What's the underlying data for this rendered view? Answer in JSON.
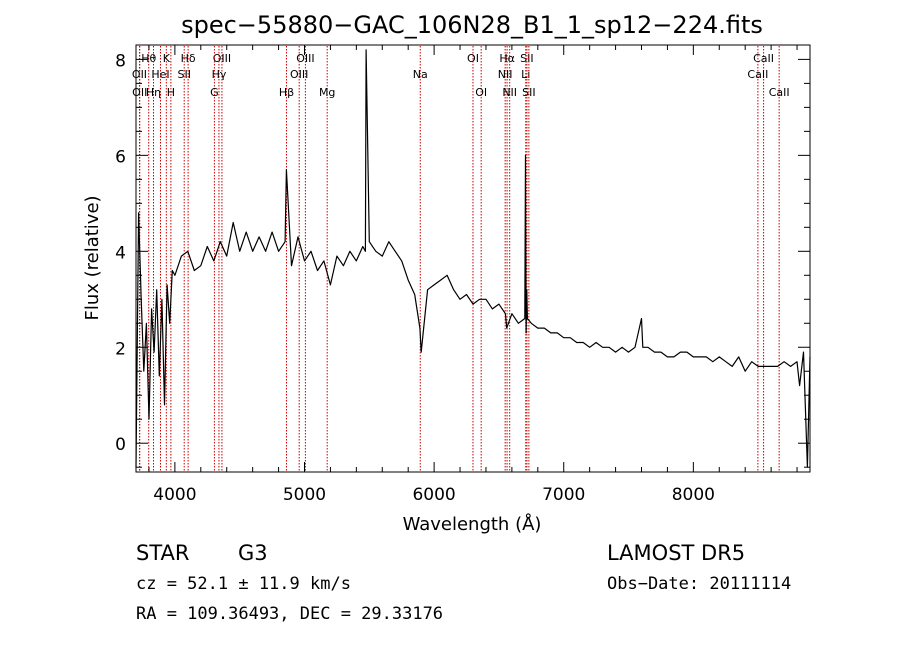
{
  "chart_data": {
    "type": "line",
    "title": "spec−55880−GAC_106N28_B1_1_sp12−224.fits",
    "xlabel": "Wavelength (Å)",
    "ylabel": "Flux (relative)",
    "xlim": [
      3700,
      8900
    ],
    "ylim": [
      -0.6,
      8.3
    ],
    "xticks": [
      4000,
      5000,
      6000,
      7000,
      8000
    ],
    "yticks": [
      0,
      2,
      4,
      6,
      8
    ],
    "grid": false,
    "series": [
      {
        "color": "#000000",
        "x": [
          3700,
          3720,
          3740,
          3760,
          3780,
          3800,
          3820,
          3840,
          3860,
          3880,
          3900,
          3920,
          3940,
          3960,
          3980,
          4000,
          4050,
          4100,
          4150,
          4200,
          4250,
          4300,
          4350,
          4400,
          4450,
          4500,
          4550,
          4600,
          4650,
          4700,
          4750,
          4800,
          4850,
          4860,
          4900,
          4950,
          5000,
          5050,
          5100,
          5150,
          5200,
          5250,
          5300,
          5350,
          5400,
          5450,
          5470,
          5475,
          5500,
          5550,
          5600,
          5650,
          5700,
          5750,
          5800,
          5850,
          5890,
          5900,
          5950,
          6000,
          6050,
          6100,
          6150,
          6200,
          6250,
          6300,
          6350,
          6400,
          6450,
          6500,
          6550,
          6560,
          6600,
          6650,
          6700,
          6705,
          6710,
          6715,
          6720,
          6750,
          6800,
          6850,
          6900,
          6950,
          7000,
          7050,
          7100,
          7150,
          7200,
          7250,
          7300,
          7350,
          7400,
          7450,
          7500,
          7550,
          7600,
          7610,
          7650,
          7700,
          7750,
          7800,
          7850,
          7900,
          7950,
          8000,
          8050,
          8100,
          8150,
          8200,
          8250,
          8300,
          8350,
          8400,
          8450,
          8500,
          8550,
          8600,
          8650,
          8700,
          8750,
          8800,
          8820,
          8850,
          8880,
          8900
        ],
        "values": [
          -0.5,
          4.8,
          3.0,
          1.5,
          2.5,
          0.5,
          2.8,
          1.9,
          3.2,
          1.4,
          3.0,
          0.8,
          3.3,
          2.5,
          3.6,
          3.5,
          3.9,
          4.0,
          3.6,
          3.7,
          4.1,
          3.8,
          4.2,
          3.9,
          4.6,
          4.0,
          4.4,
          4.0,
          4.3,
          4.0,
          4.4,
          4.0,
          4.2,
          5.7,
          3.7,
          4.3,
          3.8,
          4.0,
          3.6,
          3.8,
          3.3,
          3.9,
          3.7,
          4.0,
          3.8,
          4.1,
          4.0,
          8.2,
          4.2,
          4.0,
          3.9,
          4.2,
          4.0,
          3.8,
          3.4,
          3.1,
          2.4,
          1.9,
          3.2,
          3.3,
          3.4,
          3.5,
          3.2,
          3.0,
          3.1,
          2.9,
          3.0,
          3.0,
          2.8,
          2.9,
          2.7,
          2.4,
          2.7,
          2.5,
          2.6,
          6.0,
          2.3,
          3.2,
          2.6,
          2.5,
          2.4,
          2.4,
          2.3,
          2.3,
          2.2,
          2.2,
          2.1,
          2.1,
          2.0,
          2.1,
          2.0,
          2.0,
          1.9,
          2.0,
          1.9,
          2.0,
          2.6,
          2.0,
          2.0,
          1.9,
          1.9,
          1.8,
          1.8,
          1.9,
          1.9,
          1.8,
          1.8,
          1.8,
          1.7,
          1.8,
          1.7,
          1.6,
          1.8,
          1.5,
          1.7,
          1.6,
          1.6,
          1.6,
          1.6,
          1.7,
          1.6,
          1.7,
          1.2,
          1.9,
          -0.5,
          1.8
        ]
      }
    ],
    "lines": [
      {
        "label": "Hθ",
        "x": 3798,
        "row": 1
      },
      {
        "label": "OII",
        "x": 3727,
        "row": 2
      },
      {
        "label": "OII",
        "x": 3729,
        "row": 3
      },
      {
        "label": "K",
        "x": 3934,
        "row": 1
      },
      {
        "label": "HeI",
        "x": 3889,
        "row": 2
      },
      {
        "label": "Hη",
        "x": 3835,
        "row": 3
      },
      {
        "label": "Hδ",
        "x": 4102,
        "row": 1
      },
      {
        "label": "SII",
        "x": 4072,
        "row": 2
      },
      {
        "label": "H",
        "x": 3969,
        "row": 3
      },
      {
        "label": "OIII",
        "x": 4363,
        "row": 1
      },
      {
        "label": "Hγ",
        "x": 4340,
        "row": 2
      },
      {
        "label": "G",
        "x": 4305,
        "row": 3
      },
      {
        "label": "OIII",
        "x": 5007,
        "row": 1
      },
      {
        "label": "OIII",
        "x": 4959,
        "row": 2
      },
      {
        "label": "Hβ",
        "x": 4861,
        "row": 3
      },
      {
        "label": "Mg",
        "x": 5175,
        "row": 3
      },
      {
        "label": "Na",
        "x": 5893,
        "row": 2
      },
      {
        "label": "OI",
        "x": 6300,
        "row": 1
      },
      {
        "label": "OI",
        "x": 6363,
        "row": 3
      },
      {
        "label": "Hα",
        "x": 6563,
        "row": 1
      },
      {
        "label": "NII",
        "x": 6548,
        "row": 2
      },
      {
        "label": "NII",
        "x": 6583,
        "row": 3
      },
      {
        "label": "SII",
        "x": 6716,
        "row": 1
      },
      {
        "label": "Li",
        "x": 6707,
        "row": 2
      },
      {
        "label": "SII",
        "x": 6731,
        "row": 3
      },
      {
        "label": "CaII",
        "x": 8542,
        "row": 1
      },
      {
        "label": "CaII",
        "x": 8498,
        "row": 2
      },
      {
        "label": "CaII",
        "x": 8662,
        "row": 3
      }
    ],
    "line_color": "#cc0000"
  },
  "footer": {
    "class_label": "STAR",
    "subclass": "G3",
    "survey": "LAMOST DR5",
    "cz": "cz = 52.1 ± 11.9 km/s",
    "obs_date": "Obs−Date: 20111114",
    "coords": "RA = 109.36493, DEC =  29.33176"
  }
}
